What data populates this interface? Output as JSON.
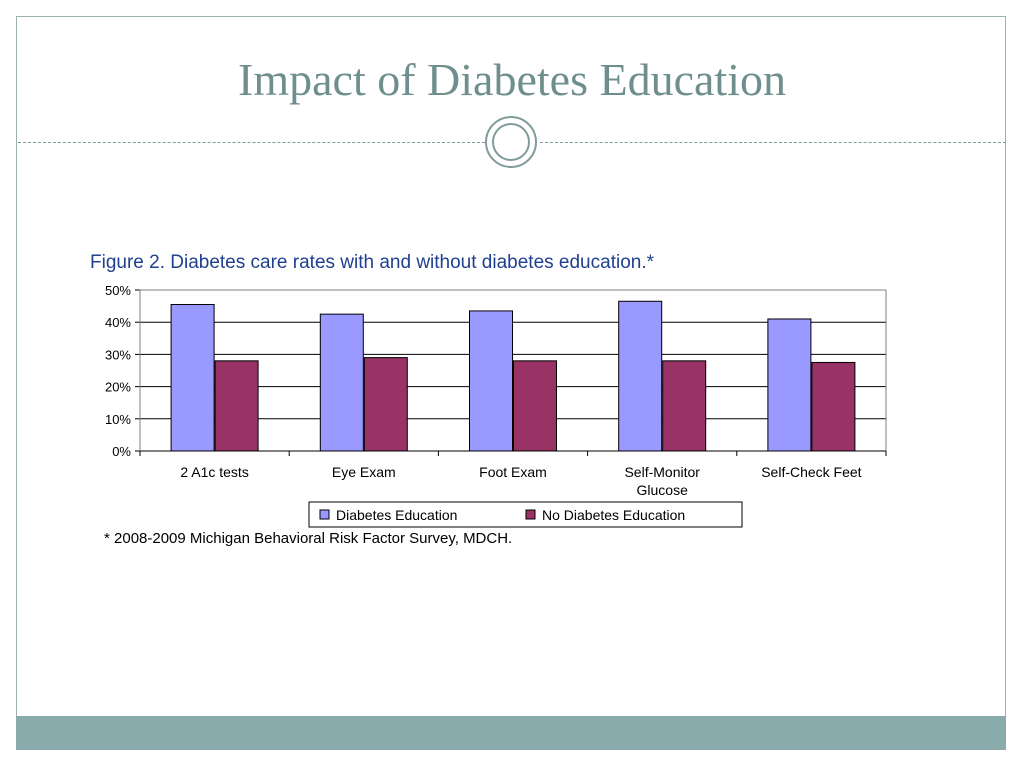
{
  "slide": {
    "title": "Impact of Diabetes Education"
  },
  "figure": {
    "caption": "Figure 2. Diabetes care rates with and without diabetes education.*",
    "footnote": "* 2008-2009 Michigan Behavioral Risk Factor Survey, MDCH."
  },
  "colors": {
    "series1": "#9999ff",
    "series2": "#993366",
    "title": "#6e8f8d",
    "caption": "#1f3f8f",
    "footer": "#8aabab"
  },
  "chart_data": {
    "type": "bar",
    "title": "Figure 2. Diabetes care rates with and without diabetes education.*",
    "categories": [
      "2 A1c tests",
      "Eye Exam",
      "Foot Exam",
      "Self-Monitor Glucose",
      "Self-Check Feet"
    ],
    "category_lines": [
      [
        "2 A1c tests"
      ],
      [
        "Eye Exam"
      ],
      [
        "Foot Exam"
      ],
      [
        "Self-Monitor",
        "Glucose"
      ],
      [
        "Self-Check Feet"
      ]
    ],
    "series": [
      {
        "name": "Diabetes Education",
        "values": [
          45.5,
          42.5,
          43.5,
          46.5,
          41
        ]
      },
      {
        "name": "No Diabetes Education",
        "values": [
          28,
          29,
          28,
          28,
          27.5
        ]
      }
    ],
    "ylim": [
      0,
      50
    ],
    "yticks": [
      0,
      10,
      20,
      30,
      40,
      50
    ],
    "ytick_labels": [
      "0%",
      "10%",
      "20%",
      "30%",
      "40%",
      "50%"
    ],
    "xlabel": "",
    "ylabel": "",
    "grid": true,
    "legend_position": "bottom"
  }
}
